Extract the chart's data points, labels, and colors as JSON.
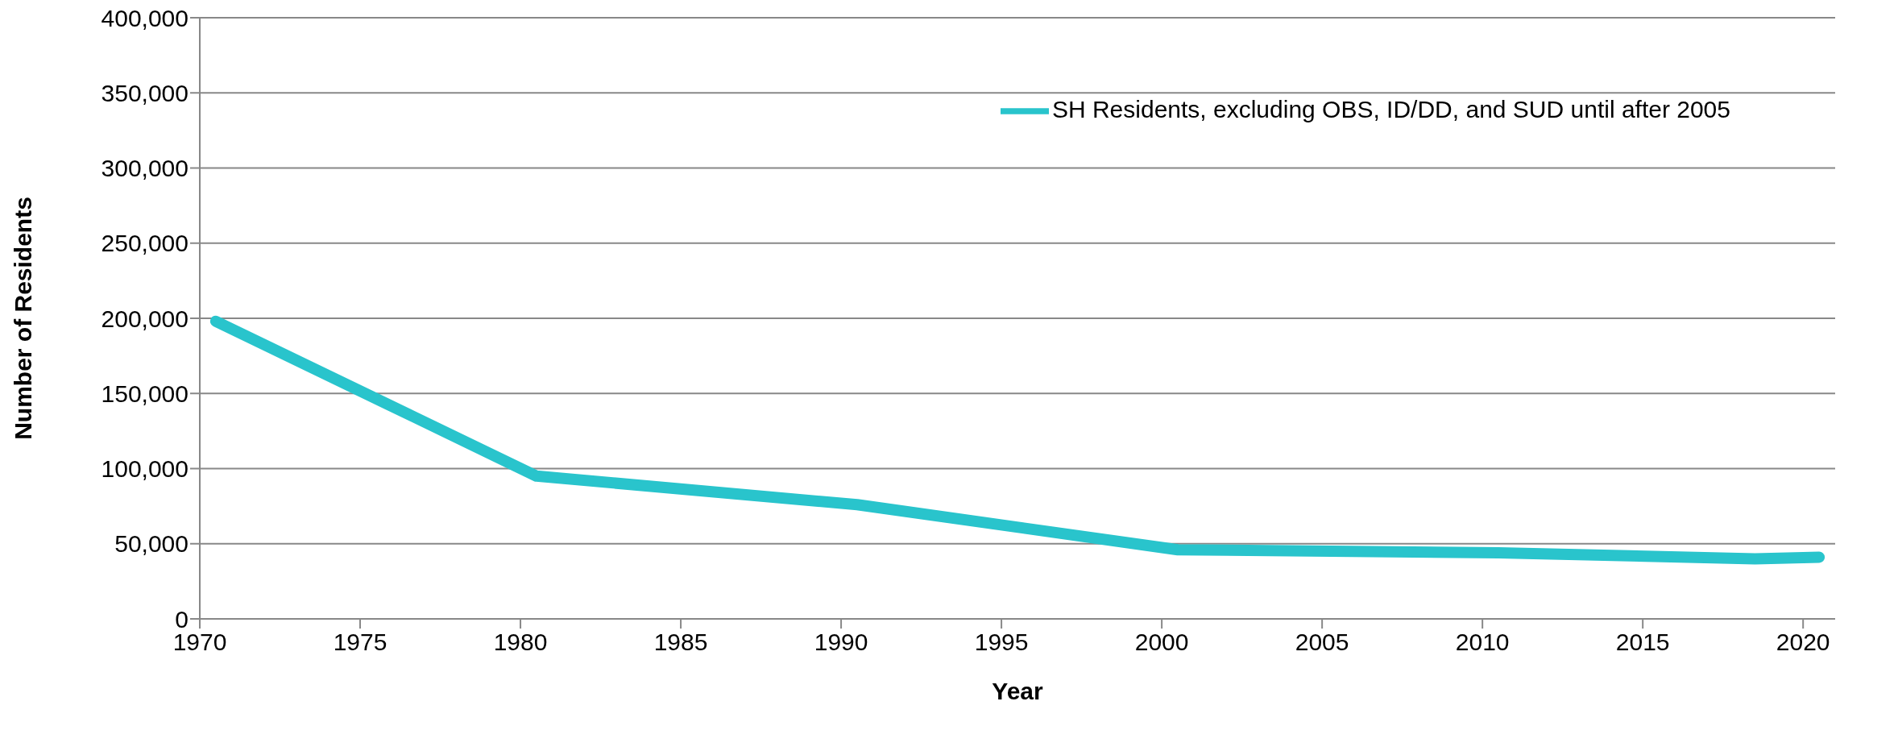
{
  "chart_data": {
    "type": "line",
    "xlabel": "Year",
    "ylabel": "Number of Residents",
    "x": [
      1970.5,
      1980.5,
      1990.5,
      2000.5,
      2010.5,
      2018.5,
      2020.5
    ],
    "series": [
      {
        "name": "SH Residents, excluding OBS, ID/DD, and SUD until after 2005",
        "color": "#29c4cc",
        "values": [
          198000,
          95000,
          76000,
          46000,
          44000,
          40000,
          41000
        ]
      }
    ],
    "xlim": [
      1970,
      2021
    ],
    "xticks": [
      1970,
      1975,
      1980,
      1985,
      1990,
      1995,
      2000,
      2005,
      2010,
      2015,
      2020
    ],
    "ylim": [
      0,
      400000
    ],
    "yticks": [
      0,
      {
        "value": 50000,
        "label": "50,000"
      },
      {
        "value": 100000,
        "label": "100,000"
      },
      {
        "value": 150000,
        "label": "150,000"
      },
      {
        "value": 200000,
        "label": "200,000"
      },
      {
        "value": 250000,
        "label": "250,000"
      },
      {
        "value": 300000,
        "label": "300,000"
      },
      {
        "value": 350000,
        "label": "350,000"
      },
      {
        "value": 400000,
        "label": "400,000"
      }
    ],
    "grid": "y",
    "legend": "top right",
    "marker": "none",
    "line_style": "solid"
  }
}
